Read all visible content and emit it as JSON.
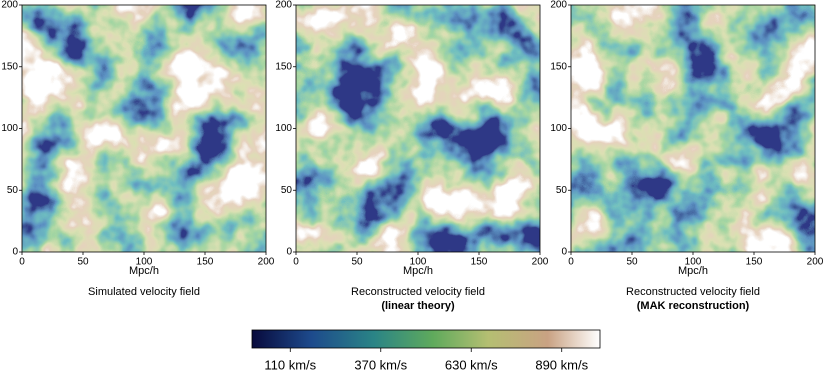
{
  "chart_data": [
    {
      "type": "heatmap",
      "caption": "Simulated velocity field",
      "xlabel": "Mpc/h",
      "xlim": [
        0,
        200
      ],
      "ylim": [
        0,
        200
      ],
      "xticks": [
        0,
        50,
        100,
        150,
        200
      ],
      "yticks": [
        0,
        50,
        100,
        150,
        200
      ]
    },
    {
      "type": "heatmap",
      "caption": "Reconstructed velocity field",
      "caption_detail": "(linear theory)",
      "xlabel": "Mpc/h",
      "xlim": [
        0,
        200
      ],
      "ylim": [
        0,
        200
      ],
      "xticks": [
        0,
        50,
        100,
        150,
        200
      ],
      "yticks": [
        0,
        50,
        100,
        150,
        200
      ]
    },
    {
      "type": "heatmap",
      "caption": "Reconstructed velocity field",
      "caption_detail": "(MAK reconstruction)",
      "xlabel": "Mpc/h",
      "xlim": [
        0,
        200
      ],
      "ylim": [
        0,
        200
      ],
      "xticks": [
        0,
        50,
        100,
        150,
        200
      ],
      "yticks": [
        0,
        50,
        100,
        150,
        200
      ]
    }
  ],
  "colorbar": {
    "clim": [
      0,
      1000
    ],
    "ticks": [
      {
        "value": 110,
        "label": "110 km/s"
      },
      {
        "value": 370,
        "label": "370 km/s"
      },
      {
        "value": 630,
        "label": "630 km/s"
      },
      {
        "value": 890,
        "label": "890 km/s"
      }
    ]
  }
}
